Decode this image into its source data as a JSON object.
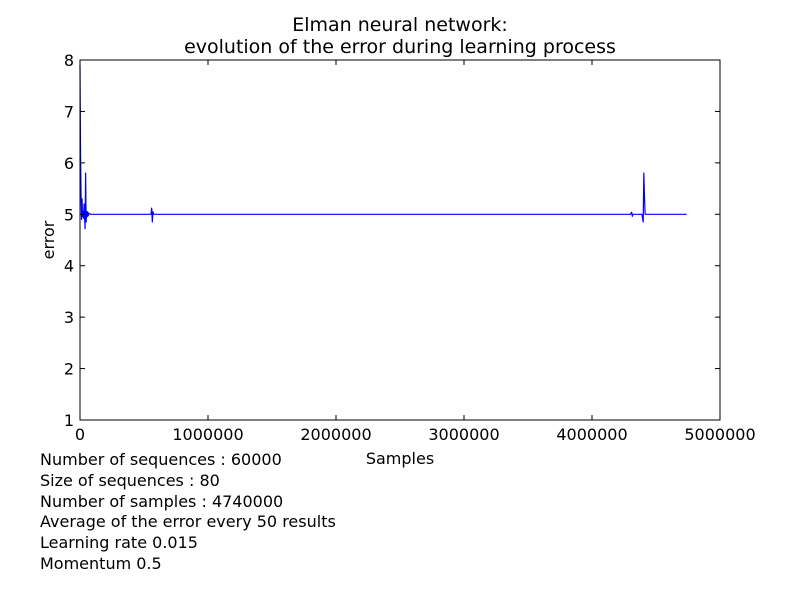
{
  "chart_data": {
    "type": "line",
    "title": [
      "Elman neural network:",
      "evolution of the error during learning process"
    ],
    "xlabel": "Samples",
    "ylabel": "error",
    "xlim": [
      0,
      5000000
    ],
    "ylim": [
      1,
      8
    ],
    "xticks": [
      "0",
      "1000000",
      "2000000",
      "3000000",
      "4000000",
      "5000000"
    ],
    "yticks": [
      "1",
      "2",
      "3",
      "4",
      "5",
      "6",
      "7",
      "8"
    ],
    "grid": false,
    "series": [
      {
        "color": "#0000ff",
        "points": [
          [
            0,
            7.9
          ],
          [
            4000,
            6.3
          ],
          [
            8000,
            5.4
          ],
          [
            12000,
            4.9
          ],
          [
            16000,
            5.3
          ],
          [
            20000,
            4.95
          ],
          [
            24000,
            5.05
          ],
          [
            28000,
            4.92
          ],
          [
            32000,
            5.2
          ],
          [
            36000,
            4.95
          ],
          [
            40000,
            4.72
          ],
          [
            44000,
            5.8
          ],
          [
            48000,
            4.85
          ],
          [
            52000,
            5.05
          ],
          [
            56000,
            4.95
          ],
          [
            60000,
            5.05
          ],
          [
            64000,
            4.97
          ],
          [
            70000,
            5.02
          ],
          [
            80000,
            5.0
          ],
          [
            300000,
            5.0
          ],
          [
            555000,
            5.0
          ],
          [
            560000,
            5.12
          ],
          [
            565000,
            4.85
          ],
          [
            570000,
            5.05
          ],
          [
            575000,
            5.0
          ],
          [
            2500000,
            5.0
          ],
          [
            4300000,
            5.0
          ],
          [
            4310000,
            5.04
          ],
          [
            4315000,
            4.96
          ],
          [
            4320000,
            5.0
          ],
          [
            4390000,
            5.0
          ],
          [
            4400000,
            4.85
          ],
          [
            4405000,
            5.8
          ],
          [
            4410000,
            5.35
          ],
          [
            4415000,
            5.0
          ],
          [
            4500000,
            5.0
          ],
          [
            4740000,
            5.0
          ]
        ]
      }
    ]
  },
  "info_lines": [
    "Number of sequences : 60000",
    "Size of sequences : 80",
    "Number of samples : 4740000",
    "Average of the error every 50 results",
    "Learning rate 0.015",
    "Momentum 0.5"
  ]
}
